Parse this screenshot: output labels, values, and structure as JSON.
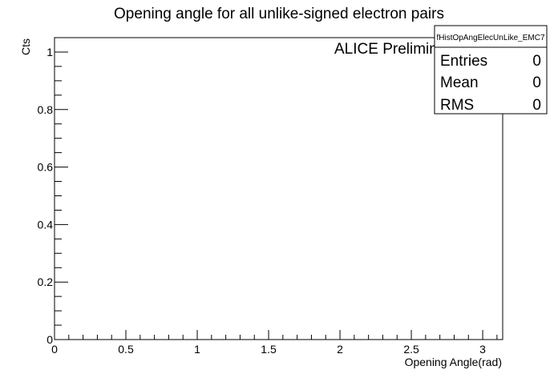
{
  "chart_data": {
    "type": "bar",
    "title": "Opening angle for all unlike-signed electron pairs",
    "xlabel": "Opening Angle(rad)",
    "ylabel": "Cts",
    "xlim": [
      0,
      3.14
    ],
    "ylim": [
      0,
      1.05
    ],
    "x_ticks": [
      "0",
      "0.5",
      "1",
      "1.5",
      "2",
      "2.5",
      "3"
    ],
    "y_ticks": [
      "0",
      "0.2",
      "0.4",
      "0.6",
      "0.8",
      "1"
    ],
    "values": [],
    "grid": false,
    "annotation": "ALICE Preliminary",
    "stats_box": {
      "name": "fHistOpAngElecUnLike_EMC7",
      "rows": [
        {
          "label": "Entries",
          "value": "0"
        },
        {
          "label": "Mean",
          "value": "0"
        },
        {
          "label": "RMS",
          "value": "0"
        }
      ]
    }
  }
}
